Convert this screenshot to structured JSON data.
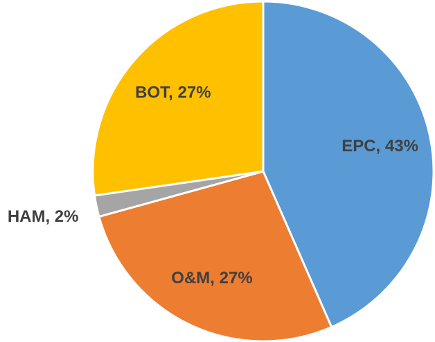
{
  "chart_data": {
    "type": "pie",
    "labels": [
      "EPC, 43%",
      "O&M, 27%",
      "HAM, 2%",
      "BOT, 27%"
    ],
    "values": [
      43,
      27,
      2,
      27
    ],
    "colors": [
      "#5b9bd5",
      "#ed7d31",
      "#a5a5a5",
      "#ffc000"
    ],
    "start_angle": 0,
    "direction": "clockwise"
  }
}
